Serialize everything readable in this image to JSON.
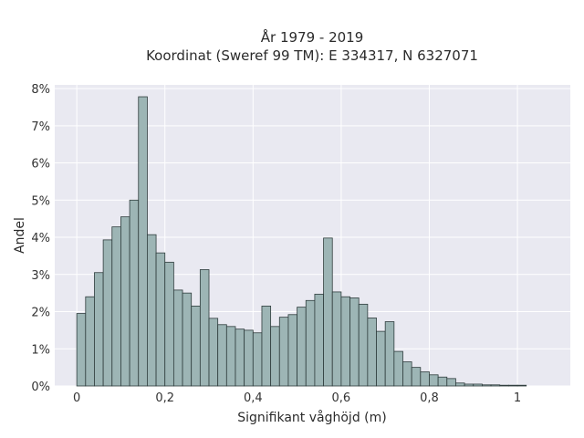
{
  "chart_data": {
    "type": "bar",
    "title": "År 1979 - 2019",
    "subtitle": "Koordinat (Sweref 99 TM): E 334317, N 6327071",
    "xlabel": "Signifikant våghöjd (m)",
    "ylabel": "Andel",
    "xlim": [
      -0.05,
      1.12
    ],
    "ylim": [
      0,
      8.1
    ],
    "x_ticks": [
      0,
      0.2,
      0.4,
      0.6,
      0.8,
      1
    ],
    "x_tick_labels": [
      "0",
      "0,2",
      "0,4",
      "0,6",
      "0,8",
      "1"
    ],
    "y_ticks": [
      0,
      1,
      2,
      3,
      4,
      5,
      6,
      7,
      8
    ],
    "y_tick_labels": [
      "0%",
      "1%",
      "2%",
      "3%",
      "4%",
      "5%",
      "6%",
      "7%",
      "8%"
    ],
    "bin_start": 0.01,
    "bin_width": 0.02,
    "values": [
      1.95,
      2.4,
      3.05,
      3.93,
      4.28,
      4.55,
      5.0,
      7.78,
      4.07,
      3.58,
      3.33,
      2.58,
      2.5,
      2.15,
      3.13,
      1.82,
      1.65,
      1.6,
      1.53,
      1.5,
      1.43,
      2.15,
      1.6,
      1.85,
      1.92,
      2.12,
      2.3,
      2.47,
      3.98,
      2.53,
      2.4,
      2.37,
      2.2,
      1.83,
      1.47,
      1.73,
      0.93,
      0.65,
      0.5,
      0.38,
      0.3,
      0.24,
      0.2,
      0.08,
      0.05,
      0.05,
      0.03,
      0.03,
      0.02,
      0.02,
      0.02
    ],
    "grid": true,
    "colors": {
      "plot_background": "#e9e9f1",
      "bar_fill": "#9db5b5",
      "bar_stroke": "#2f3d3d",
      "grid": "#ffffff"
    }
  }
}
